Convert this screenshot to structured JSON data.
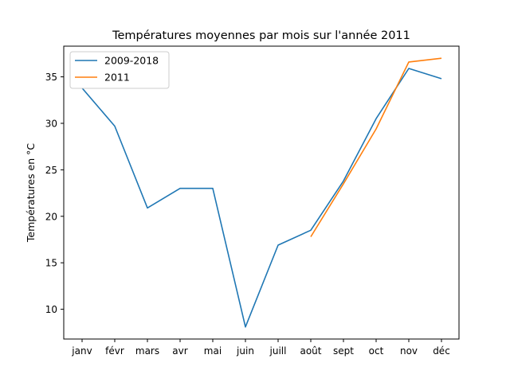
{
  "chart_data": {
    "type": "line",
    "title": "Températures moyennes par mois sur l'année 2011",
    "xlabel": "",
    "ylabel": "Températures en °C",
    "categories": [
      "janv",
      "févr",
      "mars",
      "avr",
      "mai",
      "juin",
      "juill",
      "août",
      "sept",
      "oct",
      "nov",
      "déc"
    ],
    "ylim": [
      6.8,
      38.3
    ],
    "yticks": [
      10,
      15,
      20,
      25,
      30,
      35
    ],
    "grid": false,
    "legend": "top-left",
    "series": [
      {
        "name": "2009-2018",
        "color": "#1f77b4",
        "values": [
          33.8,
          29.7,
          20.9,
          23.0,
          23.0,
          8.1,
          16.9,
          18.5,
          23.8,
          30.5,
          35.9,
          34.8
        ]
      },
      {
        "name": "2011",
        "color": "#ff7f0e",
        "values": [
          null,
          null,
          null,
          null,
          null,
          null,
          null,
          17.8,
          23.5,
          29.4,
          36.6,
          37.0
        ]
      }
    ]
  }
}
